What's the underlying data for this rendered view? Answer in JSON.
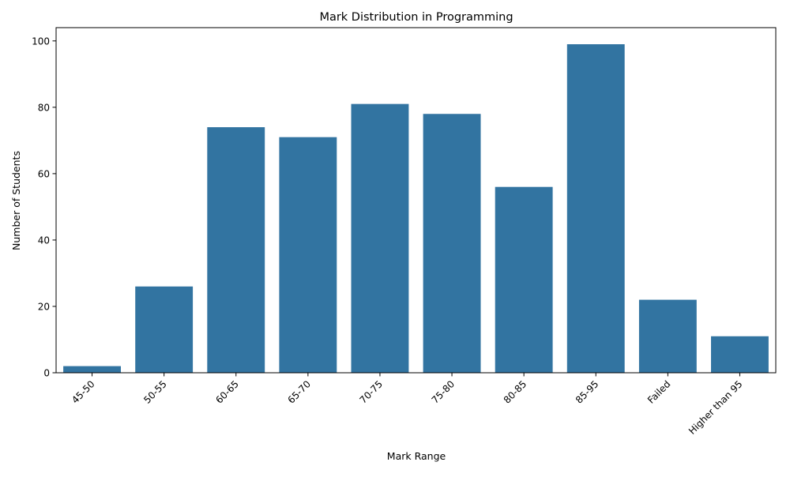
{
  "chart_data": {
    "type": "bar",
    "title": "Mark Distribution in Programming",
    "xlabel": "Mark Range",
    "ylabel": "Number of Students",
    "categories": [
      "45-50",
      "50-55",
      "60-65",
      "65-70",
      "70-75",
      "75-80",
      "80-85",
      "85-95",
      "Failed",
      "Higher than 95"
    ],
    "values": [
      2,
      26,
      74,
      71,
      81,
      78,
      56,
      99,
      22,
      11
    ],
    "ylim": [
      0,
      104
    ],
    "yticks": [
      0,
      20,
      40,
      60,
      80,
      100
    ],
    "bar_color": "#3274a1",
    "grid": false,
    "legend": "none"
  }
}
